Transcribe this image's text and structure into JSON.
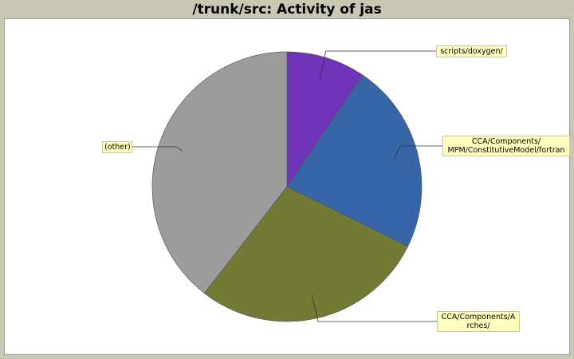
{
  "chart_data": {
    "type": "pie",
    "title": "/trunk/src: Activity of jas",
    "slices": [
      {
        "label": "scripts/doxygen/",
        "value": 9.5,
        "color": "#6f33b8"
      },
      {
        "label": "CCA/Components/\nMPM/ConstitutiveModel/fortran",
        "value": 22.8,
        "color": "#3666a8"
      },
      {
        "label": "CCA/Components/A\nrches/",
        "value": 28.2,
        "color": "#737a35"
      },
      {
        "label": "(other)",
        "value": 39.5,
        "color": "#9c9c9c"
      }
    ]
  }
}
